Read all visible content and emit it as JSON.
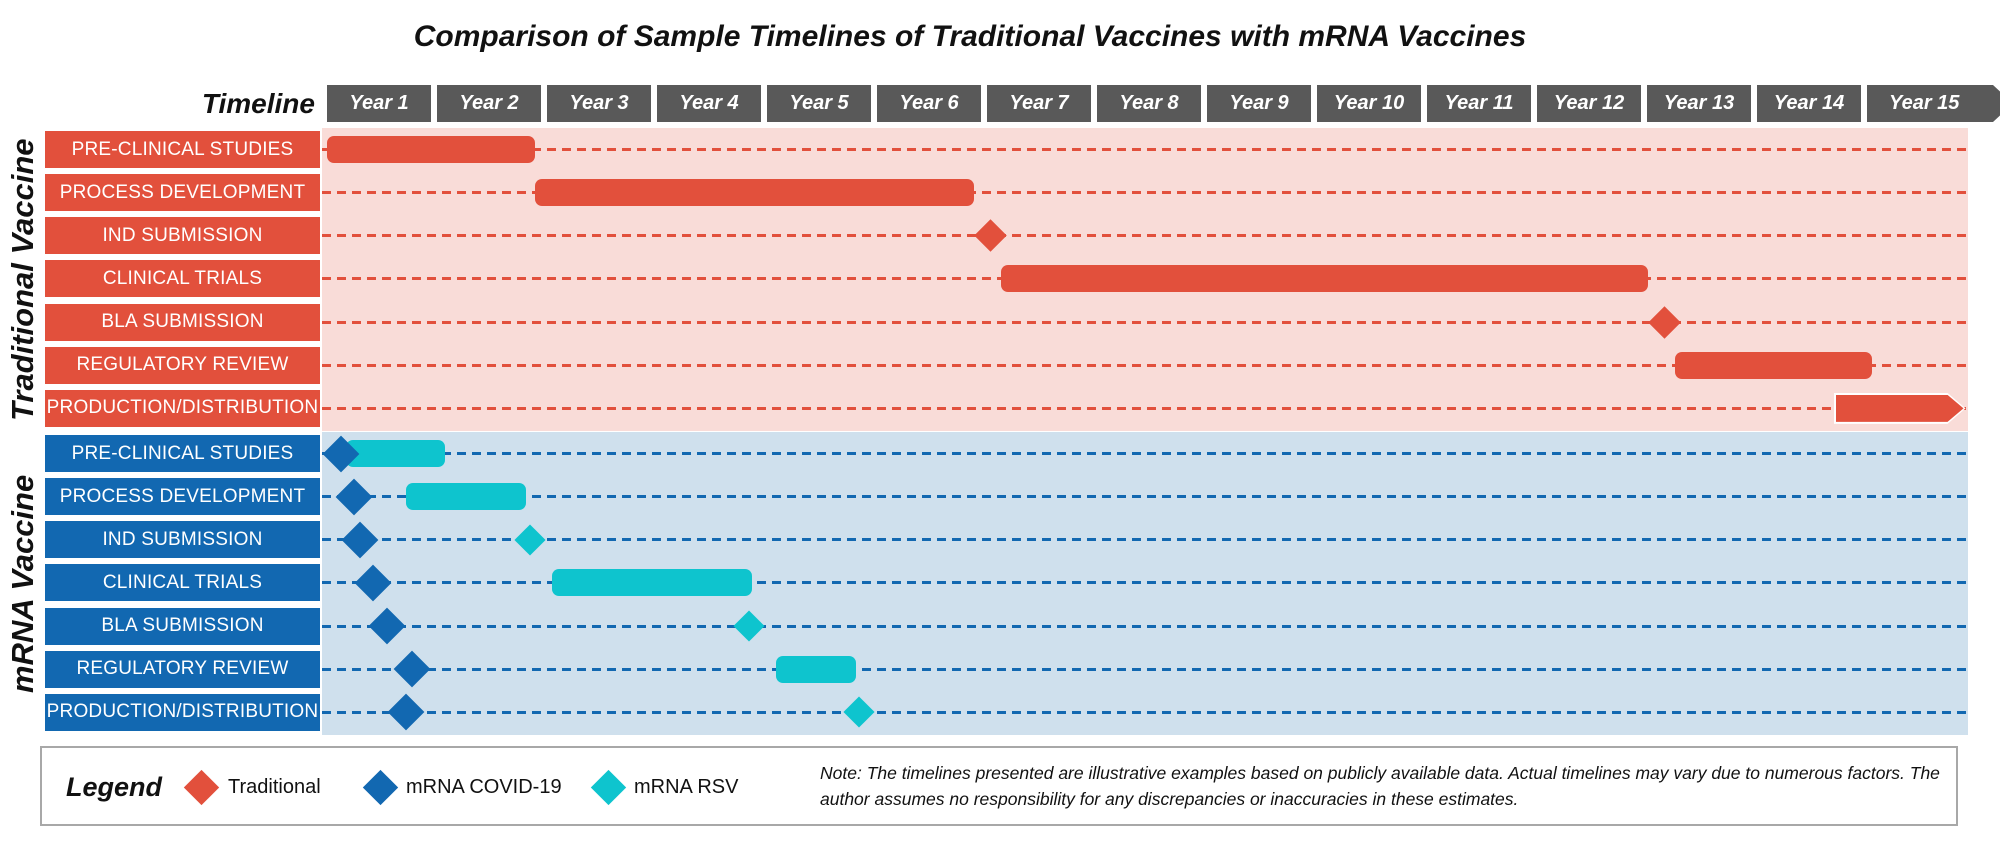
{
  "title": "Comparison of Sample Timelines of Traditional Vaccines with mRNA Vaccines",
  "timeline_header": {
    "label": "Timeline",
    "header_color": "#595959"
  },
  "sections": [
    {
      "name": "Traditional Vaccine",
      "accent": "#E2503C",
      "background": "#F9DCD8"
    },
    {
      "name": "mRNA Vaccine",
      "accent": "#1268B1",
      "background": "#CFE0ED"
    }
  ],
  "legend": {
    "title": "Legend",
    "items": [
      {
        "label": "Traditional",
        "color": "#E2503C"
      },
      {
        "label": "mRNA COVID-19",
        "color": "#1268B1"
      },
      {
        "label": "mRNA RSV",
        "color": "#0EC4CE"
      }
    ]
  },
  "note": "Note: The timelines presented are illustrative examples based on publicly available data. Actual timelines may vary due to numerous factors. The author assumes no responsibility for any discrepancies or inaccuracies in these estimates.",
  "chart_data": {
    "type": "gantt",
    "title": "Comparison of Sample Timelines of Traditional Vaccines with mRNA Vaccines",
    "x_axis": {
      "unit": "years",
      "min": 0,
      "max": 15,
      "tick_labels": [
        "Year 1",
        "Year 2",
        "Year 3",
        "Year 4",
        "Year 5",
        "Year 6",
        "Year 7",
        "Year 8",
        "Year 9",
        "Year 10",
        "Year 11",
        "Year 12",
        "Year 13",
        "Year 14",
        "Year 15"
      ]
    },
    "series": [
      {
        "name": "Traditional",
        "color": "#E2503C",
        "milestone_size": 23
      },
      {
        "name": "mRNA COVID-19",
        "color": "#1268B1",
        "milestone_size": 26
      },
      {
        "name": "mRNA RSV",
        "color": "#0EC4CE",
        "milestone_size": 22
      }
    ],
    "rows": [
      {
        "section": "Traditional Vaccine",
        "phase": "PRE-CLINICAL STUDIES",
        "items": [
          {
            "series": "Traditional",
            "shape": "bar",
            "start_year": 0,
            "end_year": 1.9
          }
        ]
      },
      {
        "section": "Traditional Vaccine",
        "phase": "PROCESS DEVELOPMENT",
        "items": [
          {
            "series": "Traditional",
            "shape": "bar",
            "start_year": 1.9,
            "end_year": 5.9
          }
        ]
      },
      {
        "section": "Traditional Vaccine",
        "phase": "IND SUBMISSION",
        "items": [
          {
            "series": "Traditional",
            "shape": "milestone",
            "year": 6.05
          }
        ]
      },
      {
        "section": "Traditional Vaccine",
        "phase": "CLINICAL TRIALS",
        "items": [
          {
            "series": "Traditional",
            "shape": "bar",
            "start_year": 6.15,
            "end_year": 12.05
          }
        ]
      },
      {
        "section": "Traditional Vaccine",
        "phase": "BLA SUBMISSION",
        "items": [
          {
            "series": "Traditional",
            "shape": "milestone",
            "year": 12.2
          }
        ]
      },
      {
        "section": "Traditional Vaccine",
        "phase": "REGULATORY REVIEW",
        "items": [
          {
            "series": "Traditional",
            "shape": "bar",
            "start_year": 12.3,
            "end_year": 14.1
          }
        ]
      },
      {
        "section": "Traditional Vaccine",
        "phase": "PRODUCTION/DISTRIBUTION",
        "items": [
          {
            "series": "Traditional",
            "shape": "arrow-bar",
            "start_year": 13.75,
            "end_year": 14.95
          }
        ]
      },
      {
        "section": "mRNA Vaccine",
        "phase": "PRE-CLINICAL STUDIES",
        "items": [
          {
            "series": "mRNA RSV",
            "shape": "bar",
            "start_year": 0.17,
            "end_year": 1.08
          },
          {
            "series": "mRNA COVID-19",
            "shape": "milestone",
            "year": 0.13
          }
        ]
      },
      {
        "section": "mRNA Vaccine",
        "phase": "PROCESS DEVELOPMENT",
        "items": [
          {
            "series": "mRNA COVID-19",
            "shape": "milestone",
            "year": 0.25
          },
          {
            "series": "mRNA RSV",
            "shape": "bar",
            "start_year": 0.72,
            "end_year": 1.82
          }
        ]
      },
      {
        "section": "mRNA Vaccine",
        "phase": "IND SUBMISSION",
        "items": [
          {
            "series": "mRNA COVID-19",
            "shape": "milestone",
            "year": 0.3
          },
          {
            "series": "mRNA RSV",
            "shape": "milestone",
            "year": 1.85
          }
        ]
      },
      {
        "section": "mRNA Vaccine",
        "phase": "CLINICAL TRIALS",
        "items": [
          {
            "series": "mRNA COVID-19",
            "shape": "milestone",
            "year": 0.42
          },
          {
            "series": "mRNA RSV",
            "shape": "bar",
            "start_year": 2.05,
            "end_year": 3.88
          }
        ]
      },
      {
        "section": "mRNA Vaccine",
        "phase": "BLA SUBMISSION",
        "items": [
          {
            "series": "mRNA COVID-19",
            "shape": "milestone",
            "year": 0.55
          },
          {
            "series": "mRNA RSV",
            "shape": "milestone",
            "year": 3.85
          }
        ]
      },
      {
        "section": "mRNA Vaccine",
        "phase": "REGULATORY REVIEW",
        "items": [
          {
            "series": "mRNA COVID-19",
            "shape": "milestone",
            "year": 0.78
          },
          {
            "series": "mRNA RSV",
            "shape": "bar",
            "start_year": 4.1,
            "end_year": 4.83
          }
        ]
      },
      {
        "section": "mRNA Vaccine",
        "phase": "PRODUCTION/DISTRIBUTION",
        "items": [
          {
            "series": "mRNA COVID-19",
            "shape": "milestone",
            "year": 0.72
          },
          {
            "series": "mRNA RSV",
            "shape": "milestone",
            "year": 4.85
          }
        ]
      }
    ]
  }
}
